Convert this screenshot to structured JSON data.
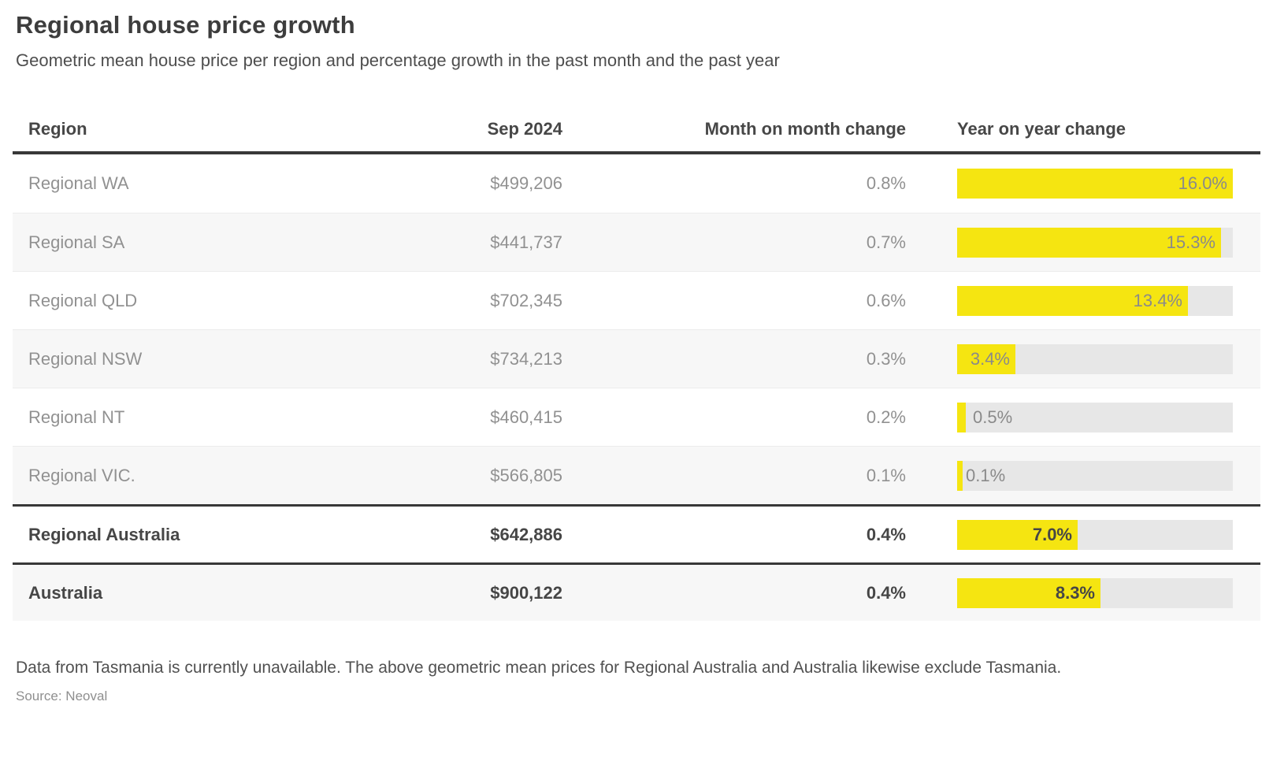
{
  "page": {
    "title": "Regional house price growth",
    "subtitle": "Geometric mean house price per region and percentage growth in the past month and the past year",
    "footnote": "Data from Tasmania is currently unavailable. The above geometric mean prices for Regional Australia and Australia likewise exclude Tasmania.",
    "source": "Source: Neoval"
  },
  "colors": {
    "bar_fill_yellow": "#f5e511",
    "bar_track_gray": "#e7e7e7",
    "row_shaded_bg": "#f7f7f7",
    "heavy_border": "#383838"
  },
  "chart_data": {
    "type": "table",
    "title": "Regional house price growth",
    "subtitle": "Geometric mean house price per region and percentage growth in the past month and the past year",
    "columns": [
      "Region",
      "Sep 2024",
      "Month on month change",
      "Year on year change"
    ],
    "bar_axis_max": 16.0,
    "bar_series_name": "Year on year change (%)",
    "rows": [
      {
        "region": "Regional WA",
        "price": "$499,206",
        "mom": "0.8%",
        "yoy": 16.0,
        "yoy_label": "16.0%",
        "bold": false,
        "shaded": false,
        "thick_top": false
      },
      {
        "region": "Regional SA",
        "price": "$441,737",
        "mom": "0.7%",
        "yoy": 15.3,
        "yoy_label": "15.3%",
        "bold": false,
        "shaded": true,
        "thick_top": false
      },
      {
        "region": "Regional QLD",
        "price": "$702,345",
        "mom": "0.6%",
        "yoy": 13.4,
        "yoy_label": "13.4%",
        "bold": false,
        "shaded": false,
        "thick_top": false
      },
      {
        "region": "Regional NSW",
        "price": "$734,213",
        "mom": "0.3%",
        "yoy": 3.4,
        "yoy_label": "3.4%",
        "bold": false,
        "shaded": true,
        "thick_top": false
      },
      {
        "region": "Regional NT",
        "price": "$460,415",
        "mom": "0.2%",
        "yoy": 0.5,
        "yoy_label": "0.5%",
        "bold": false,
        "shaded": false,
        "thick_top": false
      },
      {
        "region": "Regional VIC.",
        "price": "$566,805",
        "mom": "0.1%",
        "yoy": 0.1,
        "yoy_label": "0.1%",
        "bold": false,
        "shaded": true,
        "thick_top": false
      },
      {
        "region": "Regional Australia",
        "price": "$642,886",
        "mom": "0.4%",
        "yoy": 7.0,
        "yoy_label": "7.0%",
        "bold": true,
        "shaded": false,
        "thick_top": true
      },
      {
        "region": "Australia",
        "price": "$900,122",
        "mom": "0.4%",
        "yoy": 8.3,
        "yoy_label": "8.3%",
        "bold": true,
        "shaded": true,
        "thick_top": true
      }
    ]
  }
}
